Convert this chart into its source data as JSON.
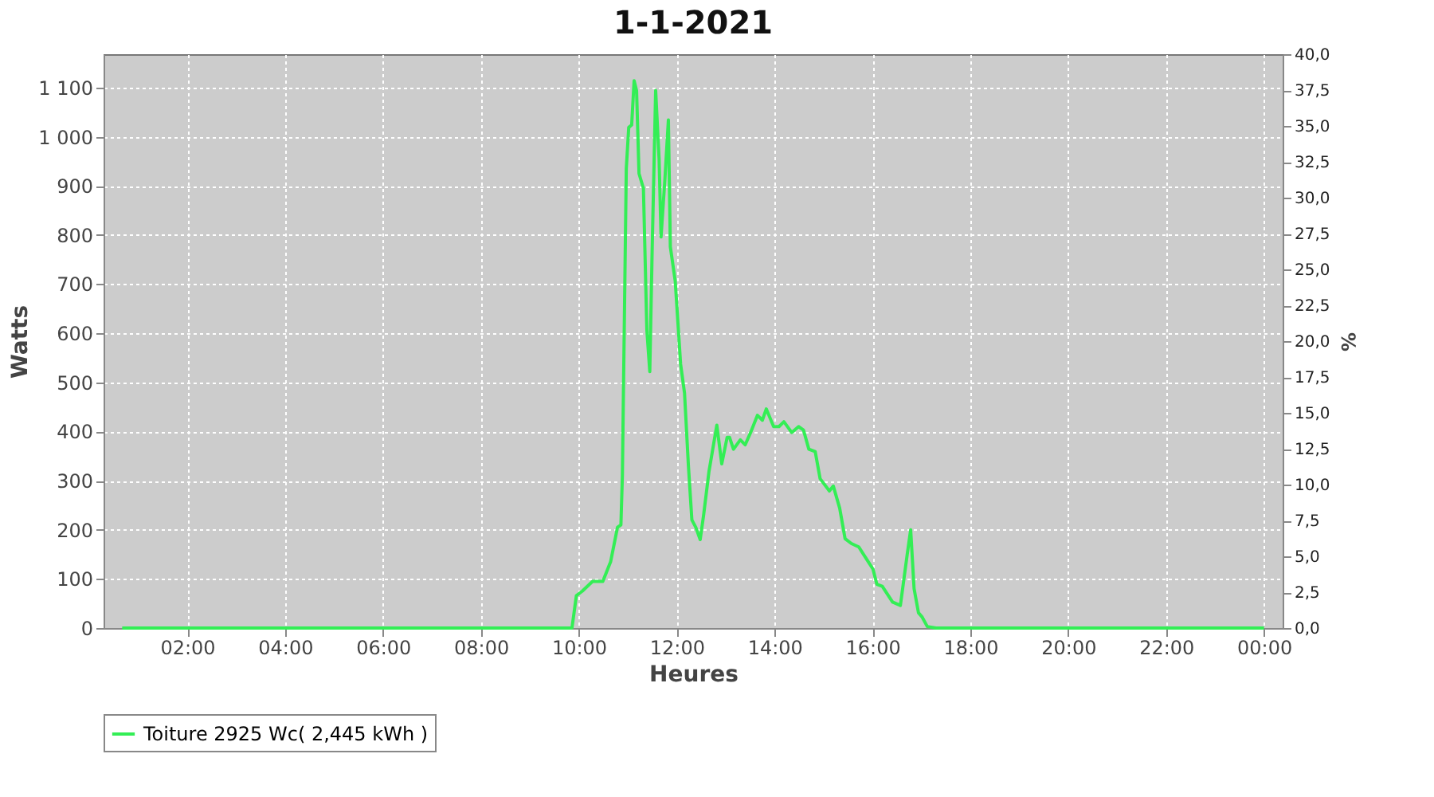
{
  "chart_data": {
    "type": "line",
    "title": "1-1-2021",
    "xlabel": "Heures",
    "ylabel": "Watts",
    "y2label": "%",
    "x": [
      0.67,
      9.54,
      9.86,
      9.95,
      10.07,
      10.28,
      10.49,
      10.65,
      10.79,
      10.86,
      10.89,
      10.97,
      11.02,
      11.08,
      11.13,
      11.18,
      11.23,
      11.32,
      11.39,
      11.45,
      11.5,
      11.57,
      11.64,
      11.68,
      11.76,
      11.83,
      11.87,
      11.97,
      12.08,
      12.16,
      12.24,
      12.31,
      12.39,
      12.48,
      12.55,
      12.66,
      12.82,
      12.92,
      13.03,
      13.08,
      13.16,
      13.3,
      13.4,
      13.51,
      13.65,
      13.75,
      13.83,
      13.98,
      14.09,
      14.19,
      14.35,
      14.49,
      14.59,
      14.7,
      14.83,
      14.93,
      15.12,
      15.2,
      15.33,
      15.44,
      15.57,
      15.72,
      15.88,
      16.01,
      16.09,
      16.2,
      16.41,
      16.57,
      16.71,
      16.78,
      16.85,
      16.94,
      17.01,
      17.12,
      17.3,
      24.0
    ],
    "series": [
      {
        "name": "Toiture 2925 Wc( 2,445 kWh )",
        "color": "#33ee55",
        "values": [
          0,
          0,
          0,
          66,
          75,
          95,
          95,
          135,
          205,
          210,
          309,
          935,
          1019,
          1024,
          1114,
          1094,
          925,
          895,
          607,
          522,
          776,
          1094,
          955,
          796,
          915,
          1034,
          776,
          706,
          537,
          478,
          329,
          220,
          205,
          180,
          230,
          319,
          413,
          334,
          388,
          388,
          364,
          383,
          373,
          398,
          433,
          423,
          446,
          410,
          410,
          420,
          398,
          410,
          403,
          364,
          359,
          304,
          279,
          289,
          244,
          182,
          172,
          165,
          140,
          120,
          89,
          85,
          53,
          46,
          150,
          200,
          80,
          31,
          23,
          3,
          0,
          0
        ]
      }
    ],
    "xlim": [
      0.29,
      24.38
    ],
    "xticks": [
      {
        "value": 2,
        "label": "02:00"
      },
      {
        "value": 4,
        "label": "04:00"
      },
      {
        "value": 6,
        "label": "06:00"
      },
      {
        "value": 8,
        "label": "08:00"
      },
      {
        "value": 10,
        "label": "10:00"
      },
      {
        "value": 12,
        "label": "12:00"
      },
      {
        "value": 14,
        "label": "14:00"
      },
      {
        "value": 16,
        "label": "16:00"
      },
      {
        "value": 18,
        "label": "18:00"
      },
      {
        "value": 20,
        "label": "20:00"
      },
      {
        "value": 22,
        "label": "22:00"
      },
      {
        "value": 24,
        "label": "00:00"
      }
    ],
    "ylim": [
      0,
      1168
    ],
    "yticks": [
      0,
      100,
      200,
      300,
      400,
      500,
      600,
      700,
      800,
      900,
      {
        "value": 1000,
        "label": "1 000"
      },
      {
        "value": 1100,
        "label": "1 100"
      }
    ],
    "y2lim": [
      0,
      40
    ],
    "y2ticks": [
      {
        "value": 0,
        "label": "0,0"
      },
      {
        "value": 2.5,
        "label": "2,5"
      },
      {
        "value": 5,
        "label": "5,0"
      },
      {
        "value": 7.5,
        "label": "7,5"
      },
      {
        "value": 10,
        "label": "10,0"
      },
      {
        "value": 12.5,
        "label": "12,5"
      },
      {
        "value": 15,
        "label": "15,0"
      },
      {
        "value": 17.5,
        "label": "17,5"
      },
      {
        "value": 20,
        "label": "20,0"
      },
      {
        "value": 22.5,
        "label": "22,5"
      },
      {
        "value": 25,
        "label": "25,0"
      },
      {
        "value": 27.5,
        "label": "27,5"
      },
      {
        "value": 30,
        "label": "30,0"
      },
      {
        "value": 32.5,
        "label": "32,5"
      },
      {
        "value": 35,
        "label": "35,0"
      },
      {
        "value": 37.5,
        "label": "37,5"
      },
      {
        "value": 40,
        "label": "40,0"
      }
    ],
    "grid": true,
    "legend": "bottom",
    "marker": "none",
    "line_style": "solid"
  }
}
